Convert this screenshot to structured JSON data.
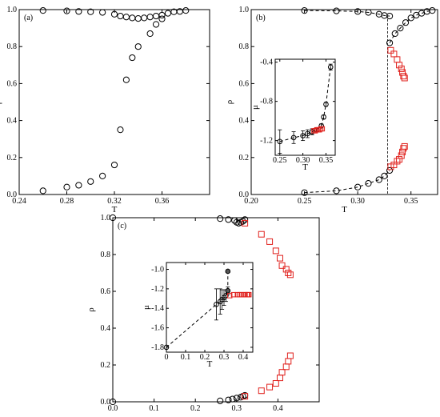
{
  "chart_data": [
    {
      "type": "scatter",
      "panel_label": "(a)",
      "xlabel": "T",
      "ylabel": "ρ",
      "xlim": [
        0.24,
        0.4
      ],
      "ylim": [
        0,
        1.0
      ],
      "xticks": [
        0.24,
        0.28,
        0.32,
        0.36
      ],
      "xtick_labels": [
        "0.24",
        "0.28",
        "0.32",
        "0.36"
      ],
      "yticks": [
        0,
        0.2,
        0.4,
        0.6,
        0.8,
        1.0
      ],
      "ytick_labels": [
        "0.0",
        "0.2",
        "0.4",
        "0.6",
        "0.8",
        "1.0"
      ],
      "series": [
        {
          "marker": "circle",
          "color": "#000000",
          "line": false,
          "x": [
            0.26,
            0.28,
            0.29,
            0.3,
            0.31,
            0.32,
            0.325,
            0.33,
            0.335,
            0.34,
            0.345,
            0.35,
            0.355,
            0.36,
            0.365,
            0.37,
            0.375,
            0.38,
            0.26,
            0.28,
            0.29,
            0.3,
            0.31,
            0.32,
            0.325,
            0.33,
            0.335,
            0.34,
            0.35,
            0.355,
            0.36
          ],
          "y": [
            0.995,
            0.993,
            0.99,
            0.988,
            0.985,
            0.975,
            0.965,
            0.96,
            0.955,
            0.952,
            0.955,
            0.96,
            0.965,
            0.97,
            0.98,
            0.988,
            0.99,
            0.995,
            0.02,
            0.04,
            0.05,
            0.07,
            0.1,
            0.16,
            0.35,
            0.62,
            0.74,
            0.8,
            0.87,
            0.92,
            0.95
          ]
        }
      ]
    },
    {
      "type": "scatter",
      "panel_label": "(b)",
      "xlabel": "T",
      "ylabel": "ρ",
      "xlim": [
        0.2,
        0.375
      ],
      "ylim": [
        0,
        1.0
      ],
      "xticks": [
        0.2,
        0.25,
        0.3,
        0.35
      ],
      "xtick_labels": [
        "0.20",
        "0.25",
        "0.30",
        "0.35"
      ],
      "yticks": [
        0,
        0.2,
        0.4,
        0.6,
        0.8,
        1.0
      ],
      "ytick_labels": [
        "0.0",
        "0.2",
        "0.4",
        "0.6",
        "0.8",
        "1.0"
      ],
      "vline_x": 0.328,
      "series": [
        {
          "marker": "circle",
          "color": "#000000",
          "line": true,
          "dashed": true,
          "x": [
            0.25,
            0.28,
            0.3,
            0.31,
            0.32,
            0.325,
            0.33
          ],
          "y": [
            0.995,
            0.993,
            0.99,
            0.985,
            0.975,
            0.968,
            0.965
          ]
        },
        {
          "marker": "circle",
          "color": "#000000",
          "line": true,
          "dashed": true,
          "x": [
            0.25,
            0.28,
            0.3,
            0.31,
            0.32,
            0.325,
            0.33
          ],
          "y": [
            0.01,
            0.02,
            0.04,
            0.06,
            0.08,
            0.1,
            0.13
          ]
        },
        {
          "marker": "circle",
          "color": "#000000",
          "line": true,
          "dashed": true,
          "x": [
            0.33,
            0.335,
            0.34,
            0.345,
            0.35,
            0.355,
            0.36,
            0.365,
            0.37
          ],
          "y": [
            0.82,
            0.87,
            0.9,
            0.93,
            0.955,
            0.97,
            0.98,
            0.99,
            0.995
          ]
        },
        {
          "marker": "square",
          "color": "#e0201c",
          "line": false,
          "x": [
            0.331,
            0.334,
            0.337,
            0.339,
            0.341,
            0.342,
            0.343,
            0.344,
            0.331,
            0.334,
            0.337,
            0.339,
            0.341,
            0.342,
            0.343,
            0.344
          ],
          "y": [
            0.78,
            0.76,
            0.73,
            0.7,
            0.68,
            0.66,
            0.64,
            0.63,
            0.15,
            0.16,
            0.18,
            0.19,
            0.21,
            0.23,
            0.25,
            0.26
          ]
        }
      ],
      "inset": {
        "xlabel": "T",
        "ylabel": "μ",
        "xlim": [
          0.24,
          0.37
        ],
        "ylim": [
          -1.35,
          -0.37
        ],
        "xticks": [
          0.25,
          0.3,
          0.35
        ],
        "xtick_labels": [
          "0.25",
          "0.30",
          "0.35"
        ],
        "yticks": [
          -1.2,
          -0.8,
          -0.4
        ],
        "ytick_labels": [
          "-1.2",
          "-0.8",
          "-0.4"
        ],
        "series": [
          {
            "marker": "circle",
            "color": "#000000",
            "line": true,
            "dashed": true,
            "x": [
              0.25,
              0.28,
              0.3,
              0.31,
              0.32,
              0.33,
              0.34,
              0.345,
              0.35,
              0.36
            ],
            "y": [
              -1.21,
              -1.17,
              -1.15,
              -1.13,
              -1.11,
              -1.09,
              -1.05,
              -0.96,
              -0.83,
              -0.45
            ],
            "yerr": [
              0.12,
              0.06,
              0.05,
              0.04,
              0.03,
              0.02,
              0.02,
              0.02,
              0.02,
              0.03
            ]
          },
          {
            "marker": "square",
            "color": "#e0201c",
            "line": false,
            "x": [
              0.324,
              0.327,
              0.33,
              0.333,
              0.336,
              0.339,
              0.342
            ],
            "y": [
              -1.1,
              -1.1,
              -1.09,
              -1.09,
              -1.09,
              -1.08,
              -1.08
            ]
          }
        ]
      }
    },
    {
      "type": "scatter",
      "panel_label": "(c)",
      "xlabel": "",
      "ylabel": "ρ",
      "xlim": [
        0.0,
        0.5
      ],
      "ylim": [
        0,
        1.0
      ],
      "xticks": [
        0,
        0.1,
        0.2,
        0.3,
        0.4
      ],
      "xtick_labels": [
        "0.0",
        "0.1",
        "0.2",
        "0.3",
        "0.4"
      ],
      "yticks": [
        0,
        0.2,
        0.4,
        0.6,
        0.8,
        1.0
      ],
      "ytick_labels": [
        "0.0",
        "0.2",
        "0.4",
        "0.6",
        "0.8",
        "1.0"
      ],
      "series": [
        {
          "marker": "circle",
          "color": "#000000",
          "line": false,
          "x": [
            0.0,
            0.0,
            0.26,
            0.28,
            0.295,
            0.3,
            0.305,
            0.31,
            0.315,
            0.32,
            0.26,
            0.28,
            0.29,
            0.3,
            0.31,
            0.315,
            0.32
          ],
          "y": [
            1.0,
            0.0,
            0.995,
            0.99,
            0.985,
            0.975,
            0.97,
            0.975,
            0.98,
            0.99,
            0.005,
            0.01,
            0.015,
            0.02,
            0.025,
            0.03,
            0.035
          ]
        },
        {
          "marker": "square",
          "color": "#e0201c",
          "line": false,
          "x": [
            0.32,
            0.36,
            0.38,
            0.395,
            0.405,
            0.41,
            0.42,
            0.425,
            0.43,
            0.32,
            0.36,
            0.38,
            0.395,
            0.405,
            0.41,
            0.42,
            0.425,
            0.43
          ],
          "y": [
            0.97,
            0.91,
            0.87,
            0.82,
            0.78,
            0.74,
            0.72,
            0.7,
            0.69,
            0.03,
            0.06,
            0.08,
            0.1,
            0.13,
            0.16,
            0.19,
            0.22,
            0.25
          ]
        }
      ],
      "inset": {
        "xlabel": "T",
        "ylabel": "μ",
        "xlim": [
          0.0,
          0.45
        ],
        "ylim": [
          -1.85,
          -0.93
        ],
        "xticks": [
          0,
          0.1,
          0.2,
          0.3,
          0.4
        ],
        "xtick_labels": [
          "0",
          "0.1",
          "0.2",
          "0.3",
          "0.4"
        ],
        "yticks": [
          -1.8,
          -1.6,
          -1.4,
          -1.2,
          -1.0
        ],
        "ytick_labels": [
          "-1.8",
          "-1.6",
          "-1.4",
          "-1.2",
          "-1.0"
        ],
        "series": [
          {
            "marker": "circle",
            "color": "#000000",
            "line": true,
            "dashed": true,
            "x": [
              0.0,
              0.26,
              0.28,
              0.29,
              0.3,
              0.31,
              0.32
            ],
            "y": [
              -1.8,
              -1.36,
              -1.33,
              -1.31,
              -1.29,
              -1.27,
              -1.22
            ],
            "yerr": [
              0.0,
              0.16,
              0.13,
              0.1,
              0.08,
              0.06,
              0.04
            ]
          },
          {
            "marker": "circle",
            "color": "#000000",
            "filled": true,
            "line": true,
            "dashed": true,
            "x": [
              0.32,
              0.32
            ],
            "y": [
              -1.22,
              -1.02
            ]
          },
          {
            "marker": "square",
            "color": "#e0201c",
            "line": false,
            "x": [
              0.33,
              0.35,
              0.37,
              0.38,
              0.39,
              0.4,
              0.41,
              0.42,
              0.425,
              0.43
            ],
            "y": [
              -1.27,
              -1.26,
              -1.26,
              -1.26,
              -1.26,
              -1.26,
              -1.26,
              -1.26,
              -1.26,
              -1.26
            ]
          }
        ]
      }
    }
  ]
}
